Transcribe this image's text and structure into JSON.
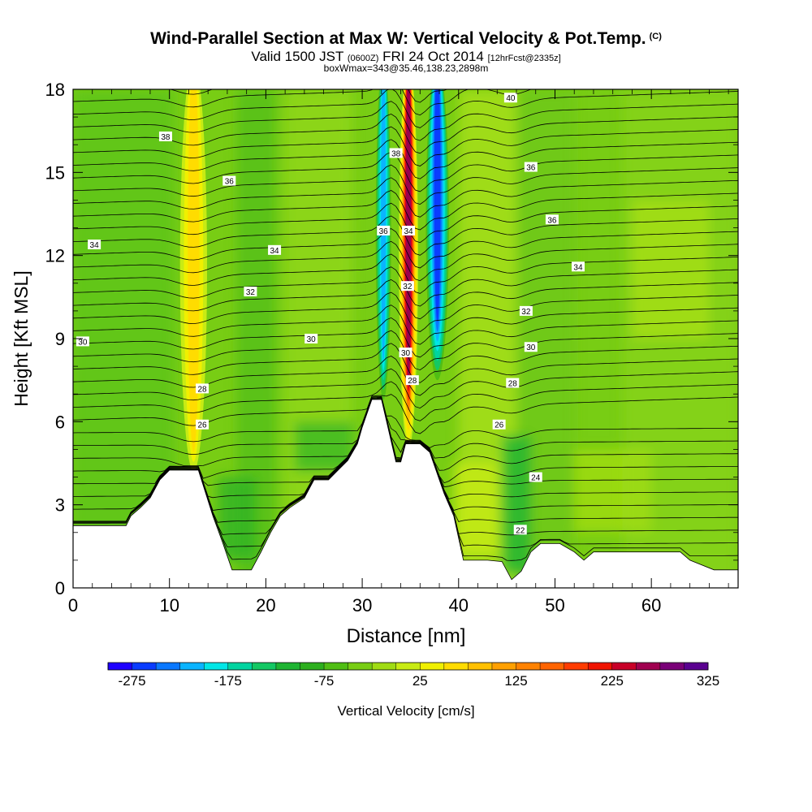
{
  "header": {
    "title": "Wind-Parallel Section at Max W: Vertical Velocity & Pot.Temp.",
    "copyright_mark": "(C)",
    "valid_prefix": "Valid 1500 JST",
    "valid_zulu": "(0600Z)",
    "valid_date": "FRI 24 Oct 2014",
    "valid_fcst": "[12hrFcst@2335z]",
    "box_wmax": "boxWmax=343@35.46,138.23,2898m"
  },
  "chart_data": {
    "type": "heatmap",
    "title": "Wind-Parallel Section at Max W: Vertical Velocity & Pot.Temp.",
    "xlabel": "Distance [nm]",
    "ylabel": "Height [Kft MSL]",
    "xlim": [
      0,
      69
    ],
    "ylim": [
      0,
      18
    ],
    "x_ticks": [
      0,
      10,
      20,
      30,
      40,
      50,
      60
    ],
    "y_ticks": [
      0,
      3,
      6,
      9,
      12,
      15,
      18
    ],
    "colorbar": {
      "label": "Vertical Velocity [cm/s]",
      "tick_labels": [
        "-275",
        "-175",
        "-75",
        "25",
        "125",
        "225",
        "325"
      ],
      "colors": [
        "#1e00ff",
        "#0a3cff",
        "#0a78ff",
        "#0ab4ff",
        "#00e6e6",
        "#00d4a0",
        "#14c864",
        "#1eb432",
        "#2daf1e",
        "#50be14",
        "#78cd14",
        "#a0dc14",
        "#c8eb14",
        "#f0f000",
        "#ffdc00",
        "#ffc000",
        "#ffa000",
        "#ff8200",
        "#ff6400",
        "#ff3c00",
        "#f01400",
        "#c80028",
        "#a00050",
        "#7a0078",
        "#5a0090"
      ]
    },
    "terrain_kft": [
      [
        0,
        2.25
      ],
      [
        5.5,
        2.25
      ],
      [
        6,
        2.6
      ],
      [
        7,
        2.9
      ],
      [
        8,
        3.25
      ],
      [
        9,
        3.9
      ],
      [
        10,
        4.25
      ],
      [
        13,
        4.25
      ],
      [
        14.5,
        2.6
      ],
      [
        15.5,
        1.65
      ],
      [
        16.5,
        0.65
      ],
      [
        18.5,
        0.65
      ],
      [
        19.5,
        1.3
      ],
      [
        20.5,
        2.0
      ],
      [
        21.5,
        2.6
      ],
      [
        22.5,
        2.9
      ],
      [
        24,
        3.25
      ],
      [
        25,
        3.9
      ],
      [
        26.5,
        3.9
      ],
      [
        27.5,
        4.25
      ],
      [
        28.5,
        4.6
      ],
      [
        29.5,
        5.2
      ],
      [
        30,
        5.8
      ],
      [
        31,
        6.8
      ],
      [
        32,
        6.8
      ],
      [
        33.5,
        4.55
      ],
      [
        34,
        4.55
      ],
      [
        34.5,
        5.2
      ],
      [
        36,
        5.2
      ],
      [
        37,
        4.9
      ],
      [
        38.5,
        3.4
      ],
      [
        39.5,
        2.6
      ],
      [
        40.5,
        1.0
      ],
      [
        43,
        1.0
      ],
      [
        44.5,
        0.95
      ],
      [
        45.5,
        0.3
      ],
      [
        46.5,
        0.6
      ],
      [
        47.5,
        1.3
      ],
      [
        48.5,
        1.6
      ],
      [
        50.5,
        1.6
      ],
      [
        52,
        1.3
      ],
      [
        53,
        1.0
      ],
      [
        54,
        1.3
      ],
      [
        63,
        1.3
      ],
      [
        64,
        1.0
      ],
      [
        66.5,
        0.65
      ],
      [
        69,
        0.65
      ]
    ],
    "vertical_velocity_features": [
      {
        "kind": "updraft",
        "x_center": 12.5,
        "x_width": 2.8,
        "y_base": 4.2,
        "y_top": 18,
        "max_cm_s": 90
      },
      {
        "kind": "updraft",
        "x_center": 34.8,
        "x_width": 2.0,
        "y_base": 5.0,
        "y_top": 18,
        "max_cm_s": 343
      },
      {
        "kind": "downdraft",
        "x_center": 32.2,
        "x_width": 1.6,
        "y_base": 6.8,
        "y_top": 18,
        "min_cm_s": -175
      },
      {
        "kind": "downdraft",
        "x_center": 37.8,
        "x_width": 2.4,
        "y_base": 7.5,
        "y_top": 18,
        "min_cm_s": -275
      }
    ],
    "pot_temp_labels": [
      {
        "text": "38",
        "x": 9.6,
        "y": 16.3
      },
      {
        "text": "36",
        "x": 16.2,
        "y": 14.7
      },
      {
        "text": "34",
        "x": 2.2,
        "y": 12.4
      },
      {
        "text": "34",
        "x": 20.9,
        "y": 12.2
      },
      {
        "text": "32",
        "x": 18.4,
        "y": 10.7
      },
      {
        "text": "30",
        "x": 1.0,
        "y": 8.9
      },
      {
        "text": "30",
        "x": 24.7,
        "y": 9.0
      },
      {
        "text": "28",
        "x": 13.4,
        "y": 7.2
      },
      {
        "text": "26",
        "x": 13.4,
        "y": 5.9
      },
      {
        "text": "38",
        "x": 33.5,
        "y": 15.7
      },
      {
        "text": "36",
        "x": 32.2,
        "y": 12.9
      },
      {
        "text": "34",
        "x": 34.8,
        "y": 12.9
      },
      {
        "text": "32",
        "x": 34.7,
        "y": 10.9
      },
      {
        "text": "30",
        "x": 34.5,
        "y": 8.5
      },
      {
        "text": "28",
        "x": 35.2,
        "y": 7.5
      },
      {
        "text": "40",
        "x": 45.4,
        "y": 17.7
      },
      {
        "text": "36",
        "x": 47.5,
        "y": 15.2
      },
      {
        "text": "36",
        "x": 49.7,
        "y": 13.3
      },
      {
        "text": "34",
        "x": 52.4,
        "y": 11.6
      },
      {
        "text": "32",
        "x": 47.0,
        "y": 10.0
      },
      {
        "text": "30",
        "x": 47.5,
        "y": 8.7
      },
      {
        "text": "28",
        "x": 45.6,
        "y": 7.4
      },
      {
        "text": "26",
        "x": 44.2,
        "y": 5.9
      },
      {
        "text": "24",
        "x": 48.0,
        "y": 4.0
      },
      {
        "text": "22",
        "x": 46.4,
        "y": 2.1
      }
    ]
  }
}
